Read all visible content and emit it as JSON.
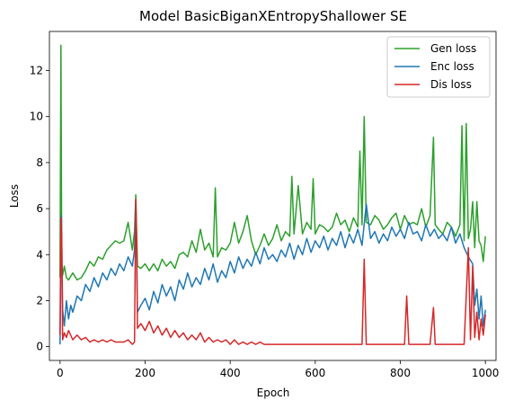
{
  "chart_data": {
    "type": "line",
    "title": "Model BasicBiganXEntropyShallower SE",
    "xlabel": "Epoch",
    "ylabel": "Loss",
    "xlim": [
      -25,
      1025
    ],
    "ylim": [
      -0.6,
      13.7
    ],
    "xticks": [
      0,
      200,
      400,
      600,
      800,
      1000
    ],
    "yticks": [
      0,
      2,
      4,
      6,
      8,
      10,
      12
    ],
    "grid": false,
    "legend": "top-right",
    "series": [
      {
        "name": "Gen loss",
        "color": "#2ca02c",
        "x": [
          0,
          2,
          4,
          6,
          10,
          15,
          20,
          30,
          40,
          50,
          60,
          70,
          80,
          90,
          100,
          110,
          120,
          130,
          140,
          150,
          160,
          170,
          175,
          178,
          182,
          190,
          200,
          210,
          220,
          230,
          240,
          250,
          260,
          270,
          280,
          290,
          300,
          310,
          320,
          330,
          340,
          350,
          360,
          365,
          370,
          380,
          390,
          400,
          410,
          420,
          430,
          440,
          450,
          460,
          470,
          480,
          490,
          500,
          510,
          520,
          530,
          540,
          545,
          550,
          560,
          570,
          580,
          590,
          595,
          600,
          610,
          620,
          630,
          640,
          650,
          660,
          670,
          680,
          690,
          700,
          705,
          710,
          715,
          720,
          730,
          740,
          750,
          760,
          770,
          780,
          790,
          800,
          810,
          820,
          830,
          840,
          850,
          860,
          870,
          878,
          882,
          890,
          900,
          910,
          920,
          930,
          940,
          945,
          950,
          955,
          960,
          965,
          970,
          975,
          980,
          985,
          990,
          995,
          1000
        ],
        "values": [
          3.0,
          13.1,
          3.6,
          3.1,
          3.5,
          3.0,
          2.9,
          3.2,
          2.9,
          3.0,
          3.3,
          3.7,
          3.5,
          3.9,
          3.8,
          4.2,
          4.4,
          4.6,
          4.5,
          4.6,
          5.4,
          4.2,
          5.0,
          6.6,
          3.5,
          3.4,
          3.6,
          3.3,
          3.6,
          3.3,
          3.8,
          3.5,
          3.7,
          3.4,
          4.0,
          4.1,
          3.9,
          4.6,
          4.1,
          5.1,
          4.2,
          4.5,
          3.9,
          6.9,
          3.9,
          4.3,
          4.2,
          4.5,
          5.4,
          4.5,
          5.0,
          5.7,
          4.6,
          4.0,
          4.4,
          4.9,
          4.4,
          4.7,
          5.3,
          4.6,
          5.0,
          4.8,
          7.4,
          4.9,
          7.0,
          4.9,
          5.4,
          5.1,
          7.3,
          4.9,
          5.3,
          5.2,
          5.0,
          5.2,
          5.8,
          5.3,
          5.5,
          5.0,
          5.6,
          5.2,
          8.5,
          5.3,
          10.0,
          5.4,
          5.3,
          5.7,
          5.5,
          5.1,
          5.3,
          5.6,
          5.8,
          5.1,
          5.7,
          5.3,
          5.4,
          5.3,
          6.0,
          5.2,
          5.7,
          9.1,
          5.3,
          5.1,
          4.9,
          5.4,
          5.2,
          4.8,
          5.3,
          9.6,
          4.6,
          9.7,
          4.7,
          5.1,
          6.3,
          4.3,
          6.3,
          4.6,
          4.4,
          3.7,
          4.8
        ]
      },
      {
        "name": "Enc loss",
        "color": "#1f77b4",
        "x": [
          0,
          3,
          6,
          10,
          15,
          20,
          25,
          30,
          40,
          50,
          60,
          70,
          80,
          90,
          100,
          110,
          120,
          130,
          140,
          150,
          160,
          170,
          175,
          178,
          182,
          190,
          200,
          210,
          220,
          230,
          240,
          250,
          260,
          270,
          280,
          290,
          300,
          310,
          320,
          330,
          340,
          350,
          360,
          370,
          380,
          390,
          400,
          410,
          420,
          430,
          440,
          450,
          460,
          470,
          480,
          490,
          500,
          510,
          520,
          530,
          540,
          550,
          560,
          570,
          580,
          590,
          600,
          610,
          620,
          630,
          640,
          650,
          660,
          670,
          680,
          690,
          700,
          710,
          720,
          730,
          740,
          750,
          760,
          770,
          780,
          790,
          800,
          810,
          820,
          830,
          840,
          850,
          860,
          870,
          880,
          890,
          900,
          910,
          920,
          930,
          940,
          950,
          960,
          970,
          975,
          980,
          985,
          990,
          995,
          1000
        ],
        "values": [
          0.1,
          5.7,
          1.6,
          0.9,
          2.0,
          1.2,
          1.8,
          1.5,
          2.2,
          2.0,
          2.7,
          2.4,
          3.0,
          2.6,
          3.2,
          2.9,
          3.4,
          3.1,
          3.6,
          3.3,
          3.9,
          3.5,
          4.2,
          6.3,
          1.5,
          1.8,
          2.1,
          1.6,
          2.4,
          1.9,
          2.7,
          2.2,
          2.6,
          2.0,
          2.9,
          2.5,
          3.2,
          2.6,
          3.0,
          2.7,
          3.4,
          2.9,
          3.6,
          2.8,
          3.3,
          3.0,
          3.7,
          3.2,
          3.9,
          3.4,
          3.8,
          3.5,
          4.1,
          3.6,
          4.3,
          3.8,
          4.0,
          3.7,
          4.2,
          3.9,
          4.5,
          3.8,
          4.4,
          4.0,
          4.7,
          4.1,
          4.6,
          4.3,
          4.8,
          4.2,
          4.7,
          4.4,
          5.0,
          4.3,
          4.9,
          4.5,
          5.1,
          4.4,
          6.2,
          4.7,
          5.0,
          4.5,
          4.9,
          4.6,
          5.2,
          4.8,
          5.1,
          4.7,
          5.4,
          4.9,
          5.0,
          4.6,
          5.3,
          4.8,
          5.1,
          4.7,
          4.9,
          4.6,
          5.2,
          4.5,
          4.9,
          4.3,
          3.9,
          3.6,
          1.8,
          2.5,
          1.2,
          2.2,
          0.9,
          1.6
        ]
      },
      {
        "name": "Dis loss",
        "color": "#d62728",
        "x": [
          0,
          2,
          4,
          6,
          10,
          15,
          20,
          30,
          40,
          50,
          60,
          70,
          80,
          90,
          100,
          110,
          120,
          130,
          140,
          150,
          160,
          170,
          175,
          178,
          180,
          182,
          190,
          200,
          210,
          220,
          230,
          240,
          250,
          260,
          270,
          280,
          290,
          300,
          310,
          320,
          330,
          340,
          350,
          360,
          370,
          380,
          390,
          400,
          410,
          420,
          430,
          440,
          450,
          460,
          470,
          480,
          490,
          500,
          510,
          520,
          530,
          540,
          550,
          560,
          570,
          580,
          590,
          600,
          610,
          620,
          630,
          640,
          650,
          660,
          670,
          680,
          690,
          700,
          710,
          715,
          720,
          730,
          740,
          750,
          760,
          770,
          780,
          790,
          800,
          810,
          815,
          820,
          830,
          840,
          850,
          860,
          870,
          878,
          882,
          890,
          900,
          910,
          920,
          930,
          940,
          950,
          960,
          965,
          970,
          975,
          980,
          985,
          990,
          995,
          1000
        ],
        "values": [
          0.5,
          5.6,
          4.8,
          0.3,
          0.6,
          0.4,
          0.7,
          0.3,
          0.5,
          0.3,
          0.4,
          0.2,
          0.3,
          0.2,
          0.3,
          0.2,
          0.3,
          0.2,
          0.2,
          0.2,
          0.3,
          0.1,
          0.2,
          6.4,
          4.7,
          0.8,
          1.0,
          0.7,
          1.1,
          0.6,
          0.9,
          0.5,
          0.8,
          0.4,
          0.7,
          0.4,
          0.6,
          0.3,
          0.5,
          0.3,
          0.6,
          0.2,
          0.4,
          0.2,
          0.3,
          0.2,
          0.3,
          0.1,
          0.3,
          0.1,
          0.2,
          0.1,
          0.2,
          0.1,
          0.2,
          0.1,
          0.1,
          0.1,
          0.1,
          0.1,
          0.1,
          0.1,
          0.1,
          0.1,
          0.1,
          0.1,
          0.1,
          0.1,
          0.1,
          0.1,
          0.1,
          0.1,
          0.1,
          0.1,
          0.1,
          0.1,
          0.1,
          0.1,
          0.1,
          3.8,
          0.1,
          0.1,
          0.1,
          0.1,
          0.1,
          0.1,
          0.1,
          0.1,
          0.1,
          0.1,
          2.2,
          0.1,
          0.1,
          0.1,
          0.1,
          0.1,
          0.1,
          1.7,
          0.1,
          0.1,
          0.1,
          0.1,
          0.1,
          0.1,
          0.1,
          0.1,
          4.3,
          0.3,
          3.5,
          0.4,
          1.5,
          0.3,
          1.2,
          0.5,
          1.4
        ]
      }
    ]
  }
}
